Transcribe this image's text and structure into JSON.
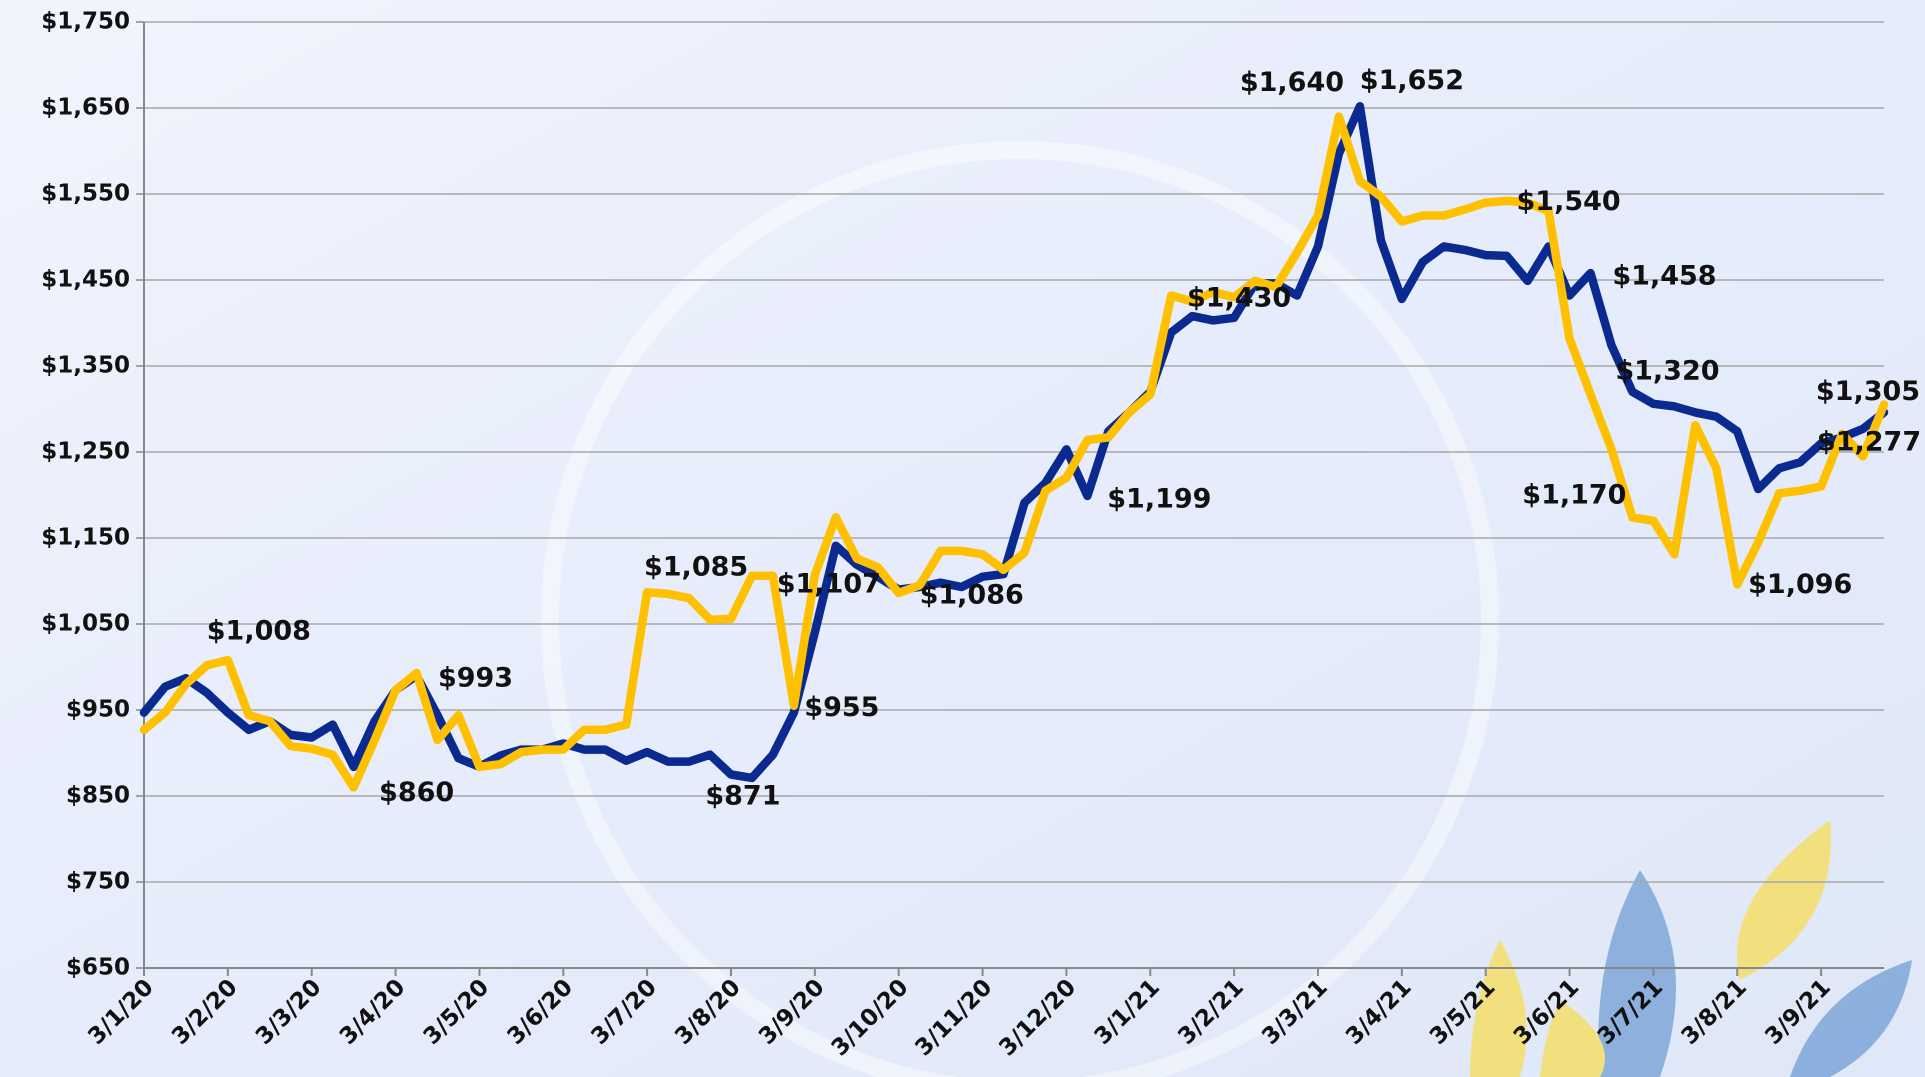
{
  "chart_data": {
    "type": "line",
    "categories": [
      "3/1/20",
      null,
      null,
      null,
      "3/2/20",
      null,
      null,
      null,
      "3/3/20",
      null,
      null,
      null,
      "3/4/20",
      null,
      null,
      null,
      "3/5/20",
      null,
      null,
      null,
      "3/6/20",
      null,
      null,
      null,
      "3/7/20",
      null,
      null,
      null,
      "3/8/20",
      null,
      null,
      null,
      "3/9/20",
      null,
      null,
      null,
      "3/10/20",
      null,
      null,
      null,
      "3/11/20",
      null,
      null,
      null,
      "3/12/20",
      null,
      null,
      null,
      "3/1/21",
      null,
      null,
      null,
      "3/2/21",
      null,
      null,
      null,
      "3/3/21",
      null,
      null,
      null,
      "3/4/21",
      null,
      null,
      null,
      "3/5/21",
      null,
      null,
      null,
      "3/6/21",
      null,
      null,
      null,
      "3/7/21",
      null,
      null,
      null,
      "3/8/21",
      null,
      null,
      null,
      "3/9/21",
      null,
      null,
      null
    ],
    "series": [
      {
        "color": "#0a2a8f",
        "values": [
          947,
          977,
          987,
          970,
          947,
          927,
          937,
          921,
          918,
          933,
          884,
          937,
          973,
          990,
          944,
          894,
          884,
          897,
          904,
          904,
          911,
          904,
          904,
          891,
          901,
          890,
          890,
          898,
          875,
          871,
          898,
          947,
          1040,
          1141,
          1119,
          1105,
          1090,
          1093,
          1098,
          1093,
          1105,
          1108,
          1191,
          1214,
          1253,
          1199,
          1274,
          1296,
          1320,
          1389,
          1408,
          1403,
          1406,
          1446,
          1446,
          1432,
          1489,
          1597,
          1652,
          1496,
          1428,
          1471,
          1489,
          1485,
          1479,
          1478,
          1449,
          1489,
          1432,
          1458,
          1374,
          1320,
          1306,
          1303,
          1296,
          1291,
          1274,
          1207,
          1231,
          1238,
          1260,
          1267,
          1277,
          1296
        ],
        "value_labels": [
          null,
          null,
          null,
          null,
          null,
          null,
          null,
          null,
          null,
          null,
          null,
          null,
          null,
          null,
          null,
          null,
          null,
          null,
          null,
          null,
          null,
          null,
          null,
          null,
          null,
          null,
          null,
          null,
          null,
          "$871",
          null,
          null,
          null,
          null,
          null,
          null,
          null,
          null,
          null,
          null,
          null,
          null,
          null,
          null,
          null,
          "$1,199",
          null,
          null,
          null,
          null,
          null,
          null,
          null,
          null,
          null,
          null,
          null,
          null,
          "$1,652",
          null,
          null,
          null,
          null,
          null,
          null,
          null,
          null,
          null,
          null,
          "$1,458",
          null,
          "$1,320",
          null,
          null,
          null,
          null,
          null,
          null,
          null,
          null,
          null,
          null,
          "$1,277",
          null
        ]
      },
      {
        "color": "#ffc000",
        "values": [
          927,
          947,
          980,
          1002,
          1008,
          944,
          937,
          908,
          905,
          898,
          860,
          915,
          973,
          993,
          915,
          944,
          884,
          887,
          901,
          904,
          904,
          927,
          927,
          933,
          1087,
          1085,
          1080,
          1055,
          1056,
          1106,
          1106,
          955,
          1107,
          1174,
          1126,
          1116,
          1086,
          1095,
          1135,
          1135,
          1131,
          1113,
          1133,
          1205,
          1220,
          1264,
          1267,
          1296,
          1317,
          1432,
          1425,
          1436,
          1430,
          1449,
          1442,
          1482,
          1525,
          1640,
          1565,
          1547,
          1518,
          1525,
          1525,
          1532,
          1540,
          1542,
          1540,
          1530,
          1382,
          1317,
          1253,
          1174,
          1170,
          1131,
          1281,
          1231,
          1096,
          1145,
          1202,
          1205,
          1210,
          1271,
          1245,
          1305
        ],
        "value_labels": [
          null,
          null,
          null,
          null,
          "$1,008",
          null,
          null,
          null,
          null,
          null,
          "$860",
          null,
          null,
          "$993",
          null,
          null,
          null,
          null,
          null,
          null,
          null,
          null,
          null,
          null,
          null,
          "$1,085",
          null,
          null,
          null,
          null,
          null,
          "$955",
          "$1,107",
          null,
          null,
          null,
          "$1,086",
          null,
          null,
          null,
          null,
          null,
          null,
          null,
          null,
          null,
          null,
          null,
          null,
          null,
          null,
          null,
          "$1,430",
          null,
          null,
          null,
          null,
          "$1,640",
          null,
          null,
          null,
          null,
          null,
          null,
          null,
          null,
          "$1,540",
          null,
          null,
          null,
          null,
          null,
          "$1,170",
          null,
          null,
          null,
          "$1,096",
          null,
          null,
          null,
          null,
          null,
          null,
          "$1,305"
        ]
      }
    ],
    "ylim": [
      650,
      1750
    ],
    "yticks": [
      {
        "value": 650,
        "label": "$650"
      },
      {
        "value": 750,
        "label": "$750"
      },
      {
        "value": 850,
        "label": "$850"
      },
      {
        "value": 950,
        "label": "$950"
      },
      {
        "value": 1050,
        "label": "$1,050"
      },
      {
        "value": 1150,
        "label": "$1,150"
      },
      {
        "value": 1250,
        "label": "$1,250"
      },
      {
        "value": 1350,
        "label": "$1,350"
      },
      {
        "value": 1450,
        "label": "$1,450"
      },
      {
        "value": 1550,
        "label": "$1,550"
      },
      {
        "value": 1650,
        "label": "$1,650"
      },
      {
        "value": 1750,
        "label": "$1,750"
      }
    ],
    "grid": true
  }
}
